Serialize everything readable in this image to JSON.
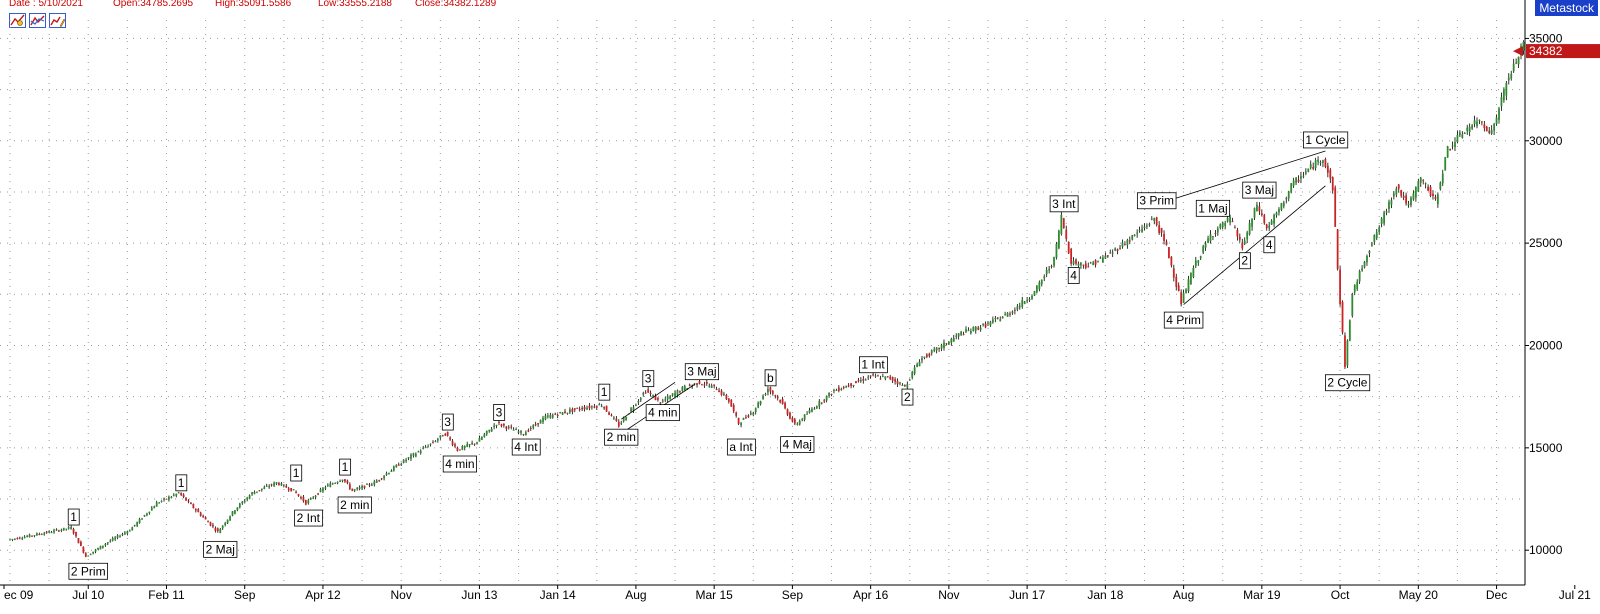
{
  "header": {
    "date": "Date : 5/10/2021",
    "open": "Open:34785.2695",
    "high": "High:35091.5586",
    "low": "Low:33555.2188",
    "close": "Close:34382.1289"
  },
  "toolbar": {
    "icons": [
      "chart-settings-icon",
      "chart-compare-icon",
      "chart-draw-icon"
    ]
  },
  "brand": "Metastock",
  "colors": {
    "up": "#2d8a2d",
    "down": "#cc2222",
    "wick": "#000000",
    "grid": "#9a9a9a",
    "price_marker": "#c01818",
    "brand_bg": "#1a3fc9",
    "header_text": "#d00000"
  },
  "chart_data": {
    "type": "candlestick",
    "series_name": "",
    "x_labels": [
      "ec 09",
      "Jul 10",
      "Feb 11",
      "Sep",
      "Apr 12",
      "Nov",
      "Jun 13",
      "Jan 14",
      "Aug",
      "Mar 15",
      "Sep",
      "Apr 16",
      "Nov",
      "Jun 17",
      "Jan 18",
      "Aug",
      "Mar 19",
      "Oct",
      "May 20",
      "Dec",
      "Jul 21"
    ],
    "y_ticks": [
      10000,
      15000,
      20000,
      25000,
      30000,
      35000
    ],
    "y_tick_labels": [
      "10000",
      "15000",
      "20000",
      "25000",
      "30000",
      "35000"
    ],
    "ylim": [
      8300,
      35900
    ],
    "grid": true,
    "last_price_label": "34382",
    "last_price": 34382,
    "anchors": [
      {
        "x": 0.0,
        "y": 10500
      },
      {
        "x": 2.6,
        "y": 11100
      },
      {
        "x": 3.2,
        "y": 9700
      },
      {
        "x": 4.1,
        "y": 10400
      },
      {
        "x": 5.0,
        "y": 11000
      },
      {
        "x": 6.1,
        "y": 12300
      },
      {
        "x": 7.0,
        "y": 12800
      },
      {
        "x": 8.0,
        "y": 11600
      },
      {
        "x": 8.6,
        "y": 10900
      },
      {
        "x": 9.3,
        "y": 12000
      },
      {
        "x": 10.0,
        "y": 12800
      },
      {
        "x": 11.0,
        "y": 13300
      },
      {
        "x": 11.7,
        "y": 12900
      },
      {
        "x": 12.2,
        "y": 12300
      },
      {
        "x": 13.0,
        "y": 13100
      },
      {
        "x": 13.7,
        "y": 13500
      },
      {
        "x": 14.1,
        "y": 12900
      },
      {
        "x": 15.0,
        "y": 13300
      },
      {
        "x": 16.0,
        "y": 14200
      },
      {
        "x": 17.3,
        "y": 15200
      },
      {
        "x": 17.9,
        "y": 15700
      },
      {
        "x": 18.4,
        "y": 14900
      },
      {
        "x": 19.2,
        "y": 15300
      },
      {
        "x": 20.0,
        "y": 16200
      },
      {
        "x": 21.1,
        "y": 15700
      },
      {
        "x": 22.0,
        "y": 16500
      },
      {
        "x": 23.3,
        "y": 16900
      },
      {
        "x": 24.3,
        "y": 17100
      },
      {
        "x": 25.0,
        "y": 16100
      },
      {
        "x": 25.5,
        "y": 16900
      },
      {
        "x": 26.1,
        "y": 17800
      },
      {
        "x": 26.7,
        "y": 17200
      },
      {
        "x": 27.6,
        "y": 17900
      },
      {
        "x": 28.3,
        "y": 18200
      },
      {
        "x": 29.0,
        "y": 17900
      },
      {
        "x": 29.5,
        "y": 17300
      },
      {
        "x": 29.9,
        "y": 16200
      },
      {
        "x": 30.5,
        "y": 16800
      },
      {
        "x": 31.1,
        "y": 17900
      },
      {
        "x": 31.6,
        "y": 17300
      },
      {
        "x": 32.2,
        "y": 16100
      },
      {
        "x": 32.9,
        "y": 16900
      },
      {
        "x": 33.8,
        "y": 17800
      },
      {
        "x": 34.7,
        "y": 18200
      },
      {
        "x": 35.3,
        "y": 18500
      },
      {
        "x": 36.1,
        "y": 18400
      },
      {
        "x": 36.7,
        "y": 18000
      },
      {
        "x": 37.3,
        "y": 19300
      },
      {
        "x": 38.0,
        "y": 19800
      },
      {
        "x": 39.0,
        "y": 20600
      },
      {
        "x": 40.0,
        "y": 21000
      },
      {
        "x": 41.0,
        "y": 21600
      },
      {
        "x": 42.0,
        "y": 22600
      },
      {
        "x": 42.8,
        "y": 24200
      },
      {
        "x": 43.1,
        "y": 26300
      },
      {
        "x": 43.5,
        "y": 24100
      },
      {
        "x": 44.2,
        "y": 23900
      },
      {
        "x": 45.0,
        "y": 24400
      },
      {
        "x": 46.0,
        "y": 25300
      },
      {
        "x": 46.9,
        "y": 26200
      },
      {
        "x": 47.4,
        "y": 24800
      },
      {
        "x": 48.0,
        "y": 22100
      },
      {
        "x": 48.5,
        "y": 23800
      },
      {
        "x": 49.2,
        "y": 25400
      },
      {
        "x": 50.0,
        "y": 26200
      },
      {
        "x": 50.5,
        "y": 24800
      },
      {
        "x": 51.1,
        "y": 26900
      },
      {
        "x": 51.5,
        "y": 25700
      },
      {
        "x": 52.1,
        "y": 26800
      },
      {
        "x": 52.5,
        "y": 27800
      },
      {
        "x": 53.2,
        "y": 28600
      },
      {
        "x": 53.8,
        "y": 29200
      },
      {
        "x": 54.2,
        "y": 27700
      },
      {
        "x": 54.4,
        "y": 23700
      },
      {
        "x": 54.7,
        "y": 19000
      },
      {
        "x": 55.0,
        "y": 22500
      },
      {
        "x": 55.5,
        "y": 24200
      },
      {
        "x": 56.1,
        "y": 25800
      },
      {
        "x": 56.8,
        "y": 27800
      },
      {
        "x": 57.3,
        "y": 26800
      },
      {
        "x": 57.8,
        "y": 28200
      },
      {
        "x": 58.4,
        "y": 27000
      },
      {
        "x": 58.9,
        "y": 29600
      },
      {
        "x": 59.6,
        "y": 30500
      },
      {
        "x": 60.2,
        "y": 31000
      },
      {
        "x": 60.7,
        "y": 30400
      },
      {
        "x": 61.3,
        "y": 32800
      },
      {
        "x": 61.7,
        "y": 33900
      },
      {
        "x": 62.0,
        "y": 34700
      }
    ],
    "annotations": [
      {
        "text": "1",
        "x": 2.6,
        "y": 11580
      },
      {
        "text": "2 Prim",
        "x": 3.2,
        "y": 8930
      },
      {
        "text": "1",
        "x": 7.0,
        "y": 13250
      },
      {
        "text": "2 Maj",
        "x": 8.6,
        "y": 10000
      },
      {
        "text": "1",
        "x": 11.7,
        "y": 13730
      },
      {
        "text": "2 Int",
        "x": 12.2,
        "y": 11530
      },
      {
        "text": "1",
        "x": 13.7,
        "y": 14020
      },
      {
        "text": "2 min",
        "x": 14.1,
        "y": 12170
      },
      {
        "text": "3",
        "x": 17.9,
        "y": 16220
      },
      {
        "text": "4 min",
        "x": 18.4,
        "y": 14170
      },
      {
        "text": "3",
        "x": 20.0,
        "y": 16690
      },
      {
        "text": "4 Int",
        "x": 21.1,
        "y": 15000
      },
      {
        "text": "1",
        "x": 24.3,
        "y": 17680
      },
      {
        "text": "2 min",
        "x": 25.0,
        "y": 15480
      },
      {
        "text": "3",
        "x": 26.1,
        "y": 18340
      },
      {
        "text": "4 min",
        "x": 26.7,
        "y": 16680
      },
      {
        "text": "3 Maj",
        "x": 28.3,
        "y": 18680
      },
      {
        "text": "a Int",
        "x": 29.9,
        "y": 15000
      },
      {
        "text": "b",
        "x": 31.1,
        "y": 18380
      },
      {
        "text": "4 Maj",
        "x": 32.2,
        "y": 15120
      },
      {
        "text": "1 Int",
        "x": 35.3,
        "y": 19020
      },
      {
        "text": "2",
        "x": 36.7,
        "y": 17440
      },
      {
        "text": "3 Int",
        "x": 43.1,
        "y": 26880
      },
      {
        "text": "4",
        "x": 43.5,
        "y": 23380
      },
      {
        "text": "3 Prim",
        "x": 46.9,
        "y": 27030
      },
      {
        "text": "4 Prim",
        "x": 48.0,
        "y": 21200
      },
      {
        "text": "1 Maj",
        "x": 49.2,
        "y": 26660
      },
      {
        "text": "2",
        "x": 50.5,
        "y": 24100
      },
      {
        "text": "3 Maj",
        "x": 51.1,
        "y": 27550
      },
      {
        "text": "4",
        "x": 51.5,
        "y": 24880
      },
      {
        "text": "1 Cycle",
        "x": 53.8,
        "y": 30000
      },
      {
        "text": "2 Cycle",
        "x": 54.7,
        "y": 18140
      }
    ],
    "trendlines": [
      {
        "x1": 25.0,
        "y1": 15700,
        "x2": 28.0,
        "y2": 18100
      },
      {
        "x1": 25.0,
        "y1": 16400,
        "x2": 27.2,
        "y2": 18200
      },
      {
        "x1": 46.9,
        "y1": 26900,
        "x2": 53.8,
        "y2": 29500
      },
      {
        "x1": 48.0,
        "y1": 22000,
        "x2": 53.8,
        "y2": 27800
      }
    ]
  }
}
